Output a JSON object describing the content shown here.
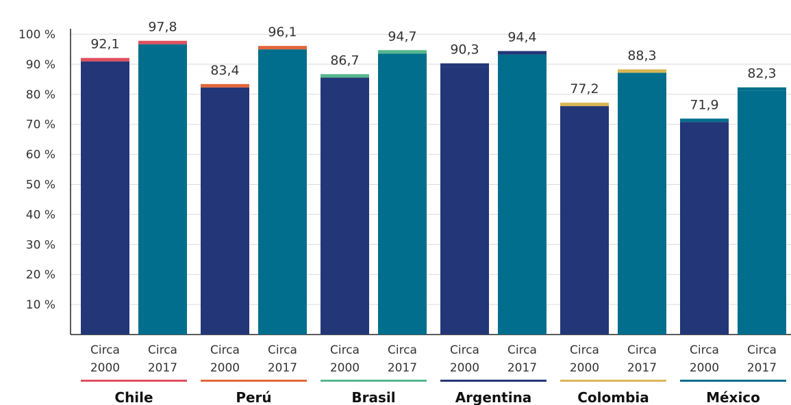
{
  "chart_data": {
    "type": "bar",
    "ylim": [
      0,
      100
    ],
    "y_ticks": [
      "10 %",
      "20 %",
      "30 %",
      "40 %",
      "50 %",
      "60 %",
      "70 %",
      "80 %",
      "90 %",
      "100 %"
    ],
    "grid": true,
    "groups": [
      {
        "name": "Chile",
        "color": "#e0505e",
        "bars": [
          {
            "label_line1": "Circa",
            "label_line2": "2000",
            "value": 92.1,
            "value_label": "92,1",
            "base_color": "#233677"
          },
          {
            "label_line1": "Circa",
            "label_line2": "2017",
            "value": 97.8,
            "value_label": "97,8",
            "base_color": "#006e8c"
          }
        ]
      },
      {
        "name": "Perú",
        "color": "#e2663a",
        "bars": [
          {
            "label_line1": "Circa",
            "label_line2": "2000",
            "value": 83.4,
            "value_label": "83,4",
            "base_color": "#233677"
          },
          {
            "label_line1": "Circa",
            "label_line2": "2017",
            "value": 96.1,
            "value_label": "96,1",
            "base_color": "#006e8c"
          }
        ]
      },
      {
        "name": "Brasil",
        "color": "#55b78d",
        "bars": [
          {
            "label_line1": "Circa",
            "label_line2": "2000",
            "value": 86.7,
            "value_label": "86,7",
            "base_color": "#233677"
          },
          {
            "label_line1": "Circa",
            "label_line2": "2017",
            "value": 94.7,
            "value_label": "94,7",
            "base_color": "#006e8c"
          }
        ]
      },
      {
        "name": "Argentina",
        "color": "#233677",
        "bars": [
          {
            "label_line1": "Circa",
            "label_line2": "2000",
            "value": 90.3,
            "value_label": "90,3",
            "base_color": "#233677"
          },
          {
            "label_line1": "Circa",
            "label_line2": "2017",
            "value": 94.4,
            "value_label": "94,4",
            "base_color": "#006e8c"
          }
        ]
      },
      {
        "name": "Colombia",
        "color": "#d9b654",
        "bars": [
          {
            "label_line1": "Circa",
            "label_line2": "2000",
            "value": 77.2,
            "value_label": "77,2",
            "base_color": "#233677"
          },
          {
            "label_line1": "Circa",
            "label_line2": "2017",
            "value": 88.3,
            "value_label": "88,3",
            "base_color": "#006e8c"
          }
        ]
      },
      {
        "name": "México",
        "color": "#006e8c",
        "bars": [
          {
            "label_line1": "Circa",
            "label_line2": "2000",
            "value": 71.9,
            "value_label": "71,9",
            "base_color": "#233677"
          },
          {
            "label_line1": "Circa",
            "label_line2": "2017",
            "value": 82.3,
            "value_label": "82,3",
            "base_color": "#006e8c"
          }
        ]
      }
    ]
  }
}
